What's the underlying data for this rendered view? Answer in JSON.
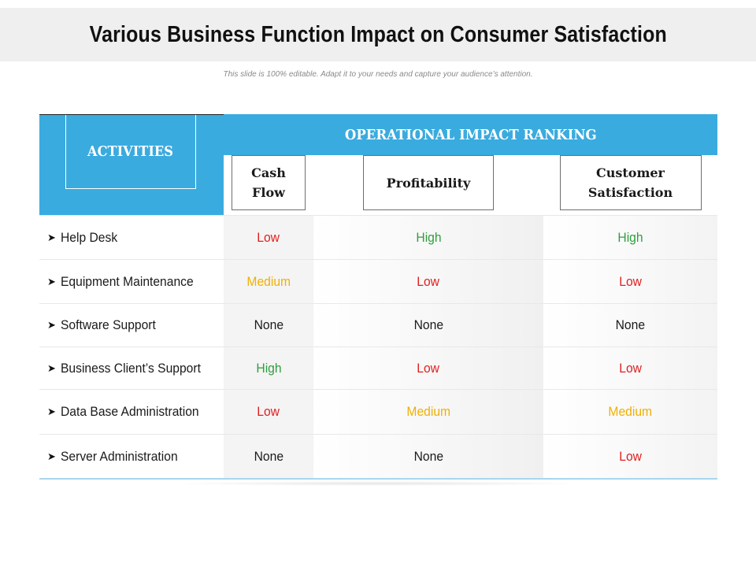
{
  "title": "Various Business Function Impact on Consumer Satisfaction",
  "subtitle": "This slide is 100% editable. Adapt it to your needs and capture your audience’s attention.",
  "table": {
    "activities_header": "ACTIVITIES",
    "group_header": "OPERATIONAL IMPACT RANKING",
    "columns": {
      "cash_flow": "Cash Flow",
      "profitability": "Profitability",
      "customer_satisfaction": "Customer Satisfaction"
    },
    "rows": [
      {
        "activity": "Help Desk",
        "cash_flow": "Low",
        "profitability": "High",
        "customer_satisfaction": "High"
      },
      {
        "activity": "Equipment Maintenance",
        "cash_flow": "Medium",
        "profitability": "Low",
        "customer_satisfaction": "Low"
      },
      {
        "activity": "Software Support",
        "cash_flow": "None",
        "profitability": "None",
        "customer_satisfaction": "None"
      },
      {
        "activity": "Business Client’s Support",
        "cash_flow": "High",
        "profitability": "Low",
        "customer_satisfaction": "Low"
      },
      {
        "activity": "Data Base Administration",
        "cash_flow": "Low",
        "profitability": "Medium",
        "customer_satisfaction": "Medium"
      },
      {
        "activity": "Server Administration",
        "cash_flow": "None",
        "profitability": "None",
        "customer_satisfaction": "Low"
      }
    ]
  },
  "colors": {
    "header_blue": "#3aabdf",
    "Low": "#e02020",
    "High": "#2e9e3e",
    "Medium": "#f0b000",
    "None": "#1a1a1a"
  },
  "icons": {
    "bullet": "arrow-right-icon"
  }
}
